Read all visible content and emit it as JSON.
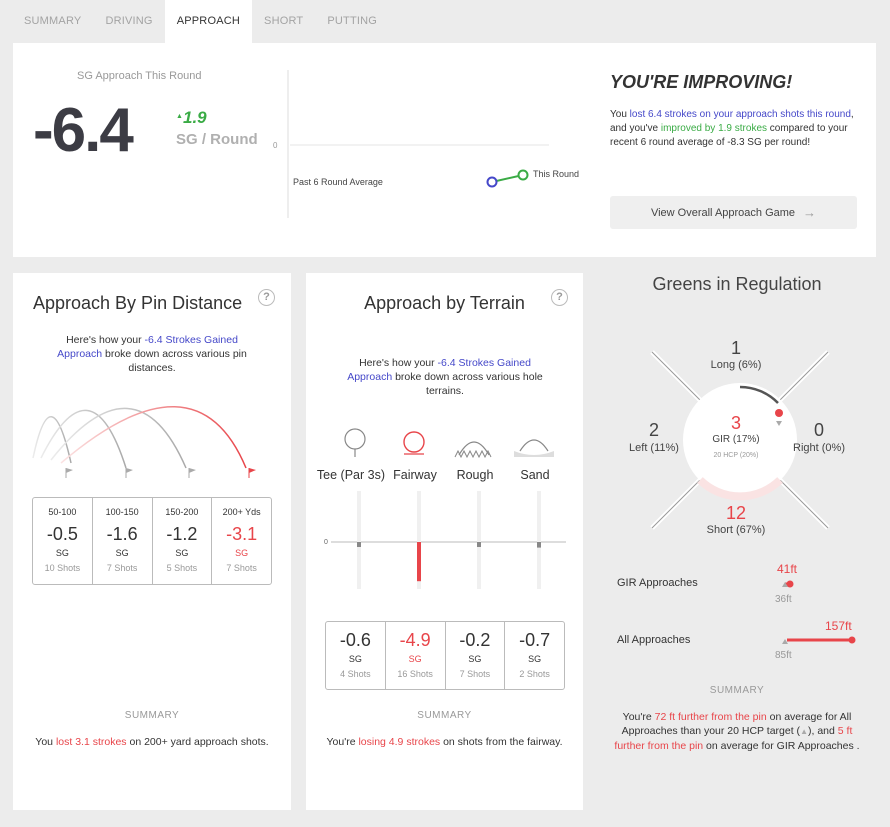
{
  "tabs": [
    "SUMMARY",
    "DRIVING",
    "APPROACH",
    "SHORT",
    "PUTTING"
  ],
  "active_tab": 2,
  "top": {
    "label": "SG Approach This Round",
    "value": "-6.4",
    "delta": "1.9",
    "unit": "SG / Round",
    "axis_zero": "0",
    "past_label": "Past 6 Round Average",
    "this_label": "This Round",
    "heading": "YOU'RE IMPROVING!",
    "msg": {
      "p1": "You ",
      "p2": "lost 6.4 strokes on your approach shots this round",
      "p3": ", and you've ",
      "p4": "improved by 1.9 strokes",
      "p5": " compared to your recent 6 round average of -8.3 SG per round!"
    },
    "button": "View Overall Approach Game"
  },
  "pin": {
    "title": "Approach By Pin Distance",
    "desc": {
      "p1": "Here's how your ",
      "p2": "-6.4 Strokes Gained Approach",
      "p3": " broke down across various pin distances."
    },
    "cells": [
      {
        "range": "50-100",
        "value": "-0.5",
        "unit": "SG",
        "shots": "10 Shots",
        "highlight": false
      },
      {
        "range": "100-150",
        "value": "-1.6",
        "unit": "SG",
        "shots": "7 Shots",
        "highlight": false
      },
      {
        "range": "150-200",
        "value": "-1.2",
        "unit": "SG",
        "shots": "5 Shots",
        "highlight": false
      },
      {
        "range": "200+ Yds",
        "value": "-3.1",
        "unit": "SG",
        "shots": "7 Shots",
        "highlight": true
      }
    ],
    "summary_label": "SUMMARY",
    "summary": {
      "p1": "You ",
      "p2": "lost 3.1 strokes",
      "p3": " on 200+ yard approach shots."
    }
  },
  "terrain": {
    "title": "Approach by Terrain",
    "desc": {
      "p1": "Here's how your ",
      "p2": "-6.4 Strokes Gained Approach",
      "p3": " broke down across various hole terrains."
    },
    "labels": [
      "Tee (Par 3s)",
      "Fairway",
      "Rough",
      "Sand"
    ],
    "axis_zero": "0",
    "cells": [
      {
        "value": "-0.6",
        "unit": "SG",
        "shots": "4 Shots",
        "highlight": false
      },
      {
        "value": "-4.9",
        "unit": "SG",
        "shots": "16 Shots",
        "highlight": true
      },
      {
        "value": "-0.2",
        "unit": "SG",
        "shots": "7 Shots",
        "highlight": false
      },
      {
        "value": "-0.7",
        "unit": "SG",
        "shots": "2 Shots",
        "highlight": false
      }
    ],
    "summary_label": "SUMMARY",
    "summary": {
      "p1": "You're ",
      "p2": "losing 4.9 strokes",
      "p3": " on shots from the fairway."
    }
  },
  "gir": {
    "title": "Greens in Regulation",
    "long": {
      "count": "1",
      "label": "Long (6%)"
    },
    "left": {
      "count": "2",
      "label": "Left (11%)"
    },
    "right": {
      "count": "0",
      "label": "Right (0%)"
    },
    "short": {
      "count": "12",
      "label": "Short (67%)"
    },
    "center": {
      "count": "3",
      "label": "GIR (17%)",
      "target": "20 HCP (20%)"
    },
    "gir_approaches": {
      "label": "GIR Approaches",
      "value": "41ft",
      "target": "36ft"
    },
    "all_approaches": {
      "label": "All Approaches",
      "value": "157ft",
      "target": "85ft"
    },
    "summary_label": "SUMMARY",
    "summary": {
      "p1": "You're ",
      "p2": "72 ft further from the pin",
      "p3": " on average for All Approaches than your 20 HCP target (",
      "p4": "), and ",
      "p5": "5 ft further from the pin",
      "p6": " on average for GIR Approaches ."
    }
  },
  "colors": {
    "blue": "#4548c9",
    "green": "#3aab45",
    "red": "#e8454a"
  }
}
